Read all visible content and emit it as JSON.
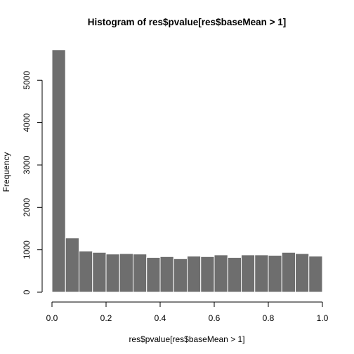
{
  "chart_data": {
    "type": "bar",
    "title": "Histogram of res$pvalue[res$baseMean > 1]",
    "xlabel": "res$pvalue[res$baseMean > 1]",
    "ylabel": "Frequency",
    "xlim": [
      0,
      1
    ],
    "ylim": [
      0,
      5700
    ],
    "bin_width": 0.05,
    "x_ticks": [
      0.0,
      0.2,
      0.4,
      0.6,
      0.8,
      1.0
    ],
    "x_tick_labels": [
      "0.0",
      "0.2",
      "0.4",
      "0.6",
      "0.8",
      "1.0"
    ],
    "y_ticks": [
      0,
      1000,
      2000,
      3000,
      4000,
      5000
    ],
    "y_tick_labels": [
      "0",
      "1000",
      "2000",
      "3000",
      "4000",
      "5000"
    ],
    "bins": [
      {
        "start": 0.0,
        "end": 0.05,
        "count": 5720
      },
      {
        "start": 0.05,
        "end": 0.1,
        "count": 1280
      },
      {
        "start": 0.1,
        "end": 0.15,
        "count": 970
      },
      {
        "start": 0.15,
        "end": 0.2,
        "count": 940
      },
      {
        "start": 0.2,
        "end": 0.25,
        "count": 900
      },
      {
        "start": 0.25,
        "end": 0.3,
        "count": 910
      },
      {
        "start": 0.3,
        "end": 0.35,
        "count": 900
      },
      {
        "start": 0.35,
        "end": 0.4,
        "count": 820
      },
      {
        "start": 0.4,
        "end": 0.45,
        "count": 840
      },
      {
        "start": 0.45,
        "end": 0.5,
        "count": 790
      },
      {
        "start": 0.5,
        "end": 0.55,
        "count": 850
      },
      {
        "start": 0.55,
        "end": 0.6,
        "count": 840
      },
      {
        "start": 0.6,
        "end": 0.65,
        "count": 880
      },
      {
        "start": 0.65,
        "end": 0.7,
        "count": 820
      },
      {
        "start": 0.7,
        "end": 0.75,
        "count": 880
      },
      {
        "start": 0.75,
        "end": 0.8,
        "count": 880
      },
      {
        "start": 0.8,
        "end": 0.85,
        "count": 870
      },
      {
        "start": 0.85,
        "end": 0.9,
        "count": 940
      },
      {
        "start": 0.9,
        "end": 0.95,
        "count": 910
      },
      {
        "start": 0.95,
        "end": 1.0,
        "count": 850
      }
    ],
    "colors": {
      "bar_fill": "#6e6e6e",
      "bar_border": "#ffffff",
      "background": "#ffffff",
      "axis": "#000000"
    },
    "grid": false,
    "legend": "none"
  }
}
